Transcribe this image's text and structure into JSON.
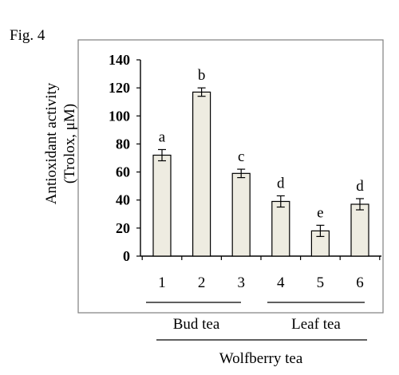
{
  "figure_label": "Fig. 4",
  "colors": {
    "bar_fill": "#eeece1",
    "bar_stroke": "#000000",
    "frame": "#7f7f7f"
  },
  "chart_data": {
    "type": "bar",
    "categories": [
      "1",
      "2",
      "3",
      "4",
      "5",
      "6"
    ],
    "values": [
      72,
      117,
      59,
      39,
      18,
      37
    ],
    "errors": [
      4,
      3,
      3,
      4,
      4,
      4
    ],
    "significance_letters": [
      "a",
      "b",
      "c",
      "d",
      "e",
      "d"
    ],
    "ylabel_lines": [
      "Antioxidant  activity",
      "(Trolox, μM)"
    ],
    "ylim": [
      0,
      140
    ],
    "yticks": [
      0,
      20,
      40,
      60,
      80,
      100,
      120,
      140
    ],
    "groups": [
      {
        "label": "Bud tea",
        "categories": [
          "1",
          "2",
          "3"
        ]
      },
      {
        "label": "Leaf tea",
        "categories": [
          "4",
          "5",
          "6"
        ]
      }
    ],
    "supergroup": {
      "label": "Wolfberry tea"
    },
    "grid": false,
    "legend": "none"
  }
}
